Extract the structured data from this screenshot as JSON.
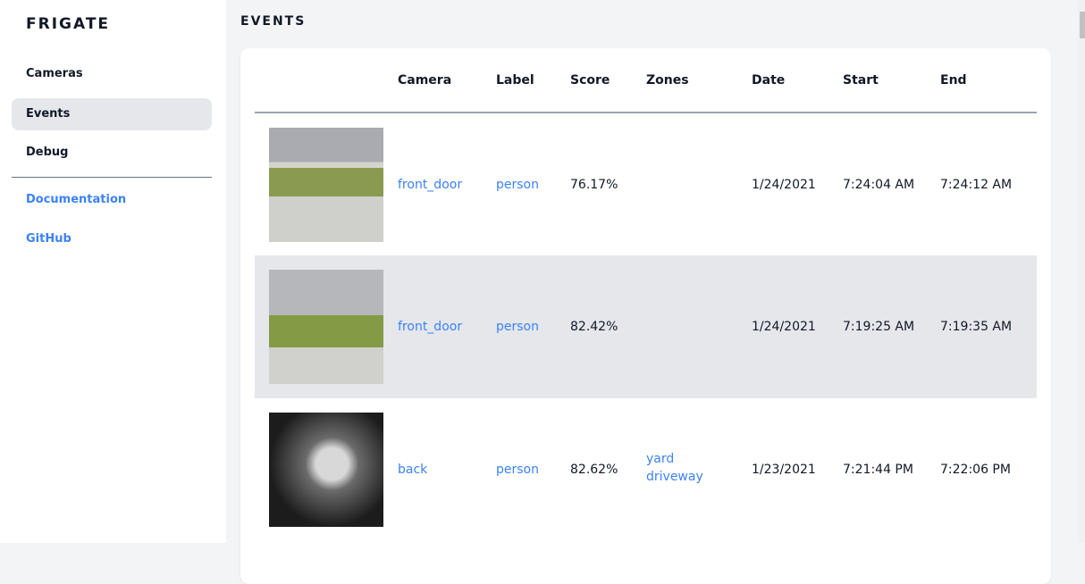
{
  "sidebar": {
    "brand": "FRIGATE",
    "items": [
      {
        "label": "Cameras"
      },
      {
        "label": "Events",
        "active": true
      },
      {
        "label": "Debug"
      }
    ],
    "links": [
      {
        "label": "Documentation"
      },
      {
        "label": "GitHub"
      }
    ]
  },
  "main": {
    "title": "EVENTS",
    "columns": [
      "",
      "Camera",
      "Label",
      "Score",
      "Zones",
      "Date",
      "Start",
      "End"
    ],
    "rows": [
      {
        "camera": "front_door",
        "label": "person",
        "score": "76.17%",
        "zones": [
          "",
          ""
        ],
        "date": "1/24/2021",
        "start": "7:24:04 AM",
        "end": "7:24:12 AM"
      },
      {
        "camera": "front_door",
        "label": "person",
        "score": "82.42%",
        "zones": [
          "",
          ""
        ],
        "date": "1/24/2021",
        "start": "7:19:25 AM",
        "end": "7:19:35 AM"
      },
      {
        "camera": "back",
        "label": "person",
        "score": "82.62%",
        "zones": [
          "yard",
          "driveway"
        ],
        "date": "1/23/2021",
        "start": "7:21:44 PM",
        "end": "7:22:06 PM"
      }
    ]
  },
  "colors": {
    "link": "#3b82f6",
    "active_bg": "#e5e7eb"
  }
}
